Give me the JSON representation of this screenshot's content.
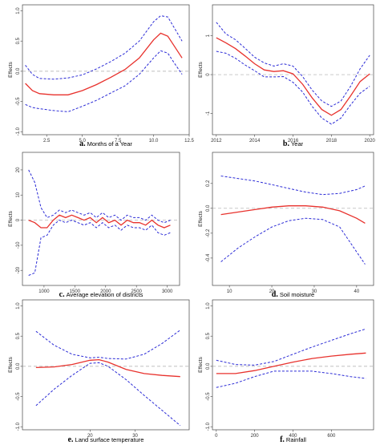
{
  "colors": {
    "fit": "#e8322d",
    "band": "#2b2bd6",
    "zero_line": "#aaaaaa",
    "frame": "#444444"
  },
  "chart_data": [
    {
      "type": "line",
      "panel": "a.",
      "xlabel": "Months of a Year",
      "ylabel": "Effects",
      "xlim": [
        0.8,
        12.5
      ],
      "ylim": [
        -1.05,
        1.1
      ],
      "xticks": [
        2.5,
        5.0,
        7.5,
        10.0,
        12.5
      ],
      "xtick_labels": [
        "2.5",
        "5.0",
        "7.5",
        "10.0",
        "12.5"
      ],
      "yticks": [
        -1.0,
        -0.5,
        0.0,
        0.5,
        1.0
      ],
      "ytick_labels": [
        "-1.0",
        "-0.5",
        "0.0",
        "0.5",
        "1.0"
      ],
      "x": [
        1,
        1.5,
        2,
        3,
        4,
        5,
        6,
        7,
        8,
        9,
        10,
        10.5,
        11,
        11.5,
        12
      ],
      "fit": [
        -0.2,
        -0.32,
        -0.37,
        -0.39,
        -0.39,
        -0.32,
        -0.22,
        -0.1,
        0.03,
        0.22,
        0.52,
        0.63,
        0.58,
        0.4,
        0.22
      ],
      "upper": [
        0.1,
        -0.05,
        -0.12,
        -0.13,
        -0.11,
        -0.06,
        0.04,
        0.16,
        0.3,
        0.5,
        0.82,
        0.92,
        0.9,
        0.7,
        0.5
      ],
      "lower": [
        -0.55,
        -0.6,
        -0.62,
        -0.65,
        -0.67,
        -0.58,
        -0.48,
        -0.36,
        -0.24,
        -0.05,
        0.22,
        0.34,
        0.3,
        0.12,
        -0.05
      ],
      "grid": false
    },
    {
      "type": "line",
      "panel": "b.",
      "xlabel": "Year",
      "ylabel": "Effects",
      "xlim": [
        2011.8,
        2020.2
      ],
      "ylim": [
        -1.55,
        1.8
      ],
      "xticks": [
        2012,
        2014,
        2016,
        2018,
        2020
      ],
      "xtick_labels": [
        "2012",
        "2014",
        "2016",
        "2018",
        "2020"
      ],
      "yticks": [
        -1,
        0,
        1
      ],
      "ytick_labels": [
        "-1",
        "0",
        "1"
      ],
      "x": [
        2012,
        2012.5,
        2013,
        2013.5,
        2014,
        2014.5,
        2015,
        2015.5,
        2016,
        2016.5,
        2017,
        2017.5,
        2018,
        2018.5,
        2019,
        2019.5,
        2020
      ],
      "fit": [
        0.95,
        0.82,
        0.67,
        0.48,
        0.28,
        0.12,
        0.08,
        0.1,
        0.02,
        -0.25,
        -0.6,
        -0.9,
        -1.05,
        -0.9,
        -0.55,
        -0.18,
        0.02
      ],
      "upper": [
        1.35,
        1.05,
        0.9,
        0.68,
        0.45,
        0.3,
        0.22,
        0.28,
        0.22,
        -0.05,
        -0.4,
        -0.68,
        -0.82,
        -0.68,
        -0.3,
        0.15,
        0.5
      ],
      "lower": [
        0.6,
        0.55,
        0.42,
        0.25,
        0.1,
        -0.06,
        -0.06,
        -0.05,
        -0.2,
        -0.45,
        -0.82,
        -1.12,
        -1.28,
        -1.12,
        -0.78,
        -0.48,
        -0.3
      ],
      "grid": false
    },
    {
      "type": "line",
      "panel": "c.",
      "xlabel": "Average elevation of districts",
      "ylabel": "Effects",
      "xlim": [
        650,
        3200
      ],
      "ylim": [
        -26,
        27
      ],
      "xticks": [
        1000,
        1500,
        2000,
        2500,
        3000
      ],
      "xtick_labels": [
        "1000",
        "1500",
        "2000",
        "2500",
        "3000"
      ],
      "yticks": [
        -20,
        -10,
        0,
        10,
        20
      ],
      "ytick_labels": [
        "-20",
        "-10",
        "0",
        "10",
        "20"
      ],
      "x": [
        750,
        850,
        950,
        1050,
        1150,
        1250,
        1350,
        1450,
        1550,
        1650,
        1750,
        1850,
        1950,
        2050,
        2150,
        2250,
        2350,
        2450,
        2550,
        2650,
        2750,
        2850,
        2950,
        3050
      ],
      "fit": [
        0,
        -1,
        -3,
        -3,
        0,
        2,
        1,
        2,
        1,
        0,
        1,
        -1,
        1,
        -1,
        0,
        -2,
        0,
        -1,
        -1,
        -2,
        0,
        -2,
        -3,
        -2
      ],
      "upper": [
        20,
        15,
        5,
        1,
        2,
        4,
        3,
        4,
        3,
        2,
        3,
        1,
        3,
        1,
        2,
        0,
        2,
        1,
        1,
        0,
        2,
        0,
        -1,
        0
      ],
      "lower": [
        -22,
        -21,
        -7,
        -6,
        -2,
        0,
        -1,
        0,
        -1,
        -2,
        -1,
        -3,
        -1,
        -3,
        -2,
        -4,
        -2,
        -3,
        -3,
        -4,
        -2,
        -5,
        -6,
        -5
      ],
      "grid": false
    },
    {
      "type": "line",
      "panel": "d.",
      "xlabel": "Soil moisture",
      "ylabel": "Effects",
      "xlim": [
        6,
        44
      ],
      "ylim": [
        -0.62,
        0.45
      ],
      "xticks": [
        10,
        20,
        30,
        40
      ],
      "xtick_labels": [
        "10",
        "20",
        "30",
        "40"
      ],
      "yticks": [
        -0.4,
        -0.2,
        0.0,
        0.2
      ],
      "ytick_labels": [
        "-0.4",
        "-0.2",
        "0.0",
        "0.2"
      ],
      "x": [
        8,
        12,
        16,
        20,
        24,
        28,
        32,
        36,
        40,
        42
      ],
      "fit": [
        -0.05,
        -0.03,
        -0.01,
        0.01,
        0.02,
        0.02,
        0.01,
        -0.02,
        -0.08,
        -0.12
      ],
      "upper": [
        0.26,
        0.24,
        0.22,
        0.19,
        0.16,
        0.13,
        0.11,
        0.12,
        0.15,
        0.18
      ],
      "lower": [
        -0.43,
        -0.32,
        -0.23,
        -0.15,
        -0.1,
        -0.08,
        -0.09,
        -0.15,
        -0.35,
        -0.45
      ],
      "grid": false
    },
    {
      "type": "line",
      "panel": "e.",
      "xlabel": "Land surface temperature",
      "ylabel": "Effects",
      "xlim": [
        5,
        42
      ],
      "ylim": [
        -1.05,
        1.1
      ],
      "xticks": [
        20,
        30
      ],
      "xtick_labels": [
        "20",
        "30"
      ],
      "yticks": [
        -1.0,
        -0.5,
        0.0,
        0.5,
        1.0
      ],
      "ytick_labels": [
        "-1.0",
        "-0.5",
        "0.0",
        "0.5",
        "1.0"
      ],
      "x": [
        8,
        12,
        16,
        20,
        22,
        24,
        28,
        32,
        36,
        40
      ],
      "fit": [
        -0.02,
        -0.01,
        0.03,
        0.1,
        0.11,
        0.07,
        -0.05,
        -0.12,
        -0.15,
        -0.17
      ],
      "upper": [
        0.58,
        0.35,
        0.2,
        0.14,
        0.15,
        0.13,
        0.12,
        0.2,
        0.38,
        0.6
      ],
      "lower": [
        -0.65,
        -0.38,
        -0.15,
        0.05,
        0.06,
        0.0,
        -0.22,
        -0.48,
        -0.73,
        -0.98
      ],
      "grid": false
    },
    {
      "type": "line",
      "panel": "f.",
      "xlabel": "Rainfall",
      "ylabel": "Effects",
      "xlim": [
        -20,
        820
      ],
      "ylim": [
        -1.05,
        1.1
      ],
      "xticks": [
        0,
        200,
        400,
        600
      ],
      "xtick_labels": [
        "0",
        "200",
        "400",
        "600"
      ],
      "yticks": [
        -1.0,
        -0.5,
        0.0,
        0.5,
        1.0
      ],
      "ytick_labels": [
        "-1.0",
        "-0.5",
        "0.0",
        "0.5",
        "1.0"
      ],
      "x": [
        0,
        100,
        200,
        300,
        400,
        500,
        600,
        700,
        780
      ],
      "fit": [
        -0.12,
        -0.12,
        -0.07,
        0.0,
        0.07,
        0.13,
        0.17,
        0.2,
        0.22
      ],
      "upper": [
        0.1,
        0.03,
        0.02,
        0.08,
        0.2,
        0.32,
        0.43,
        0.54,
        0.62
      ],
      "lower": [
        -0.35,
        -0.28,
        -0.17,
        -0.08,
        -0.08,
        -0.08,
        -0.12,
        -0.17,
        -0.2
      ],
      "grid": false
    }
  ]
}
